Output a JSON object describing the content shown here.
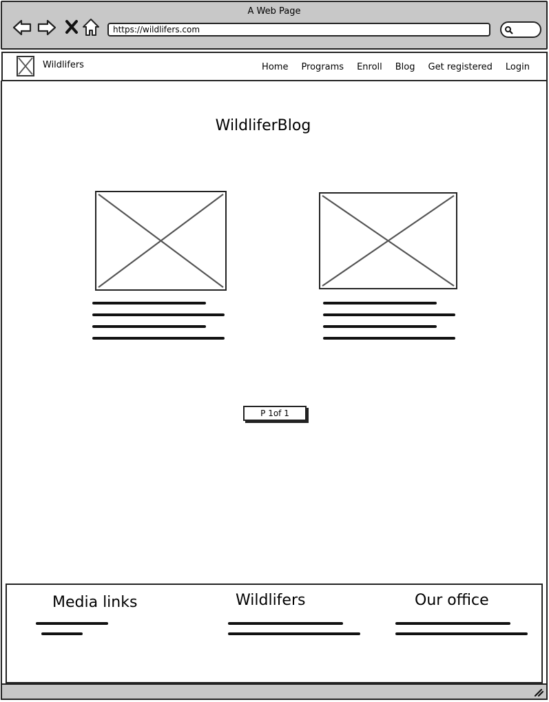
{
  "browser": {
    "window_title": "A Web Page",
    "url": "https://wildlifers.com"
  },
  "navbar": {
    "brand": "Wildlifers",
    "menu": [
      "Home",
      "Programs",
      "Enroll",
      "Blog",
      "Get registered",
      "Login"
    ]
  },
  "main": {
    "title": "WildliferBlog",
    "pager": "P 1of 1"
  },
  "footer": {
    "col1_heading": "Media links",
    "col2_heading": "Wildlifers",
    "col3_heading": "Our office"
  }
}
